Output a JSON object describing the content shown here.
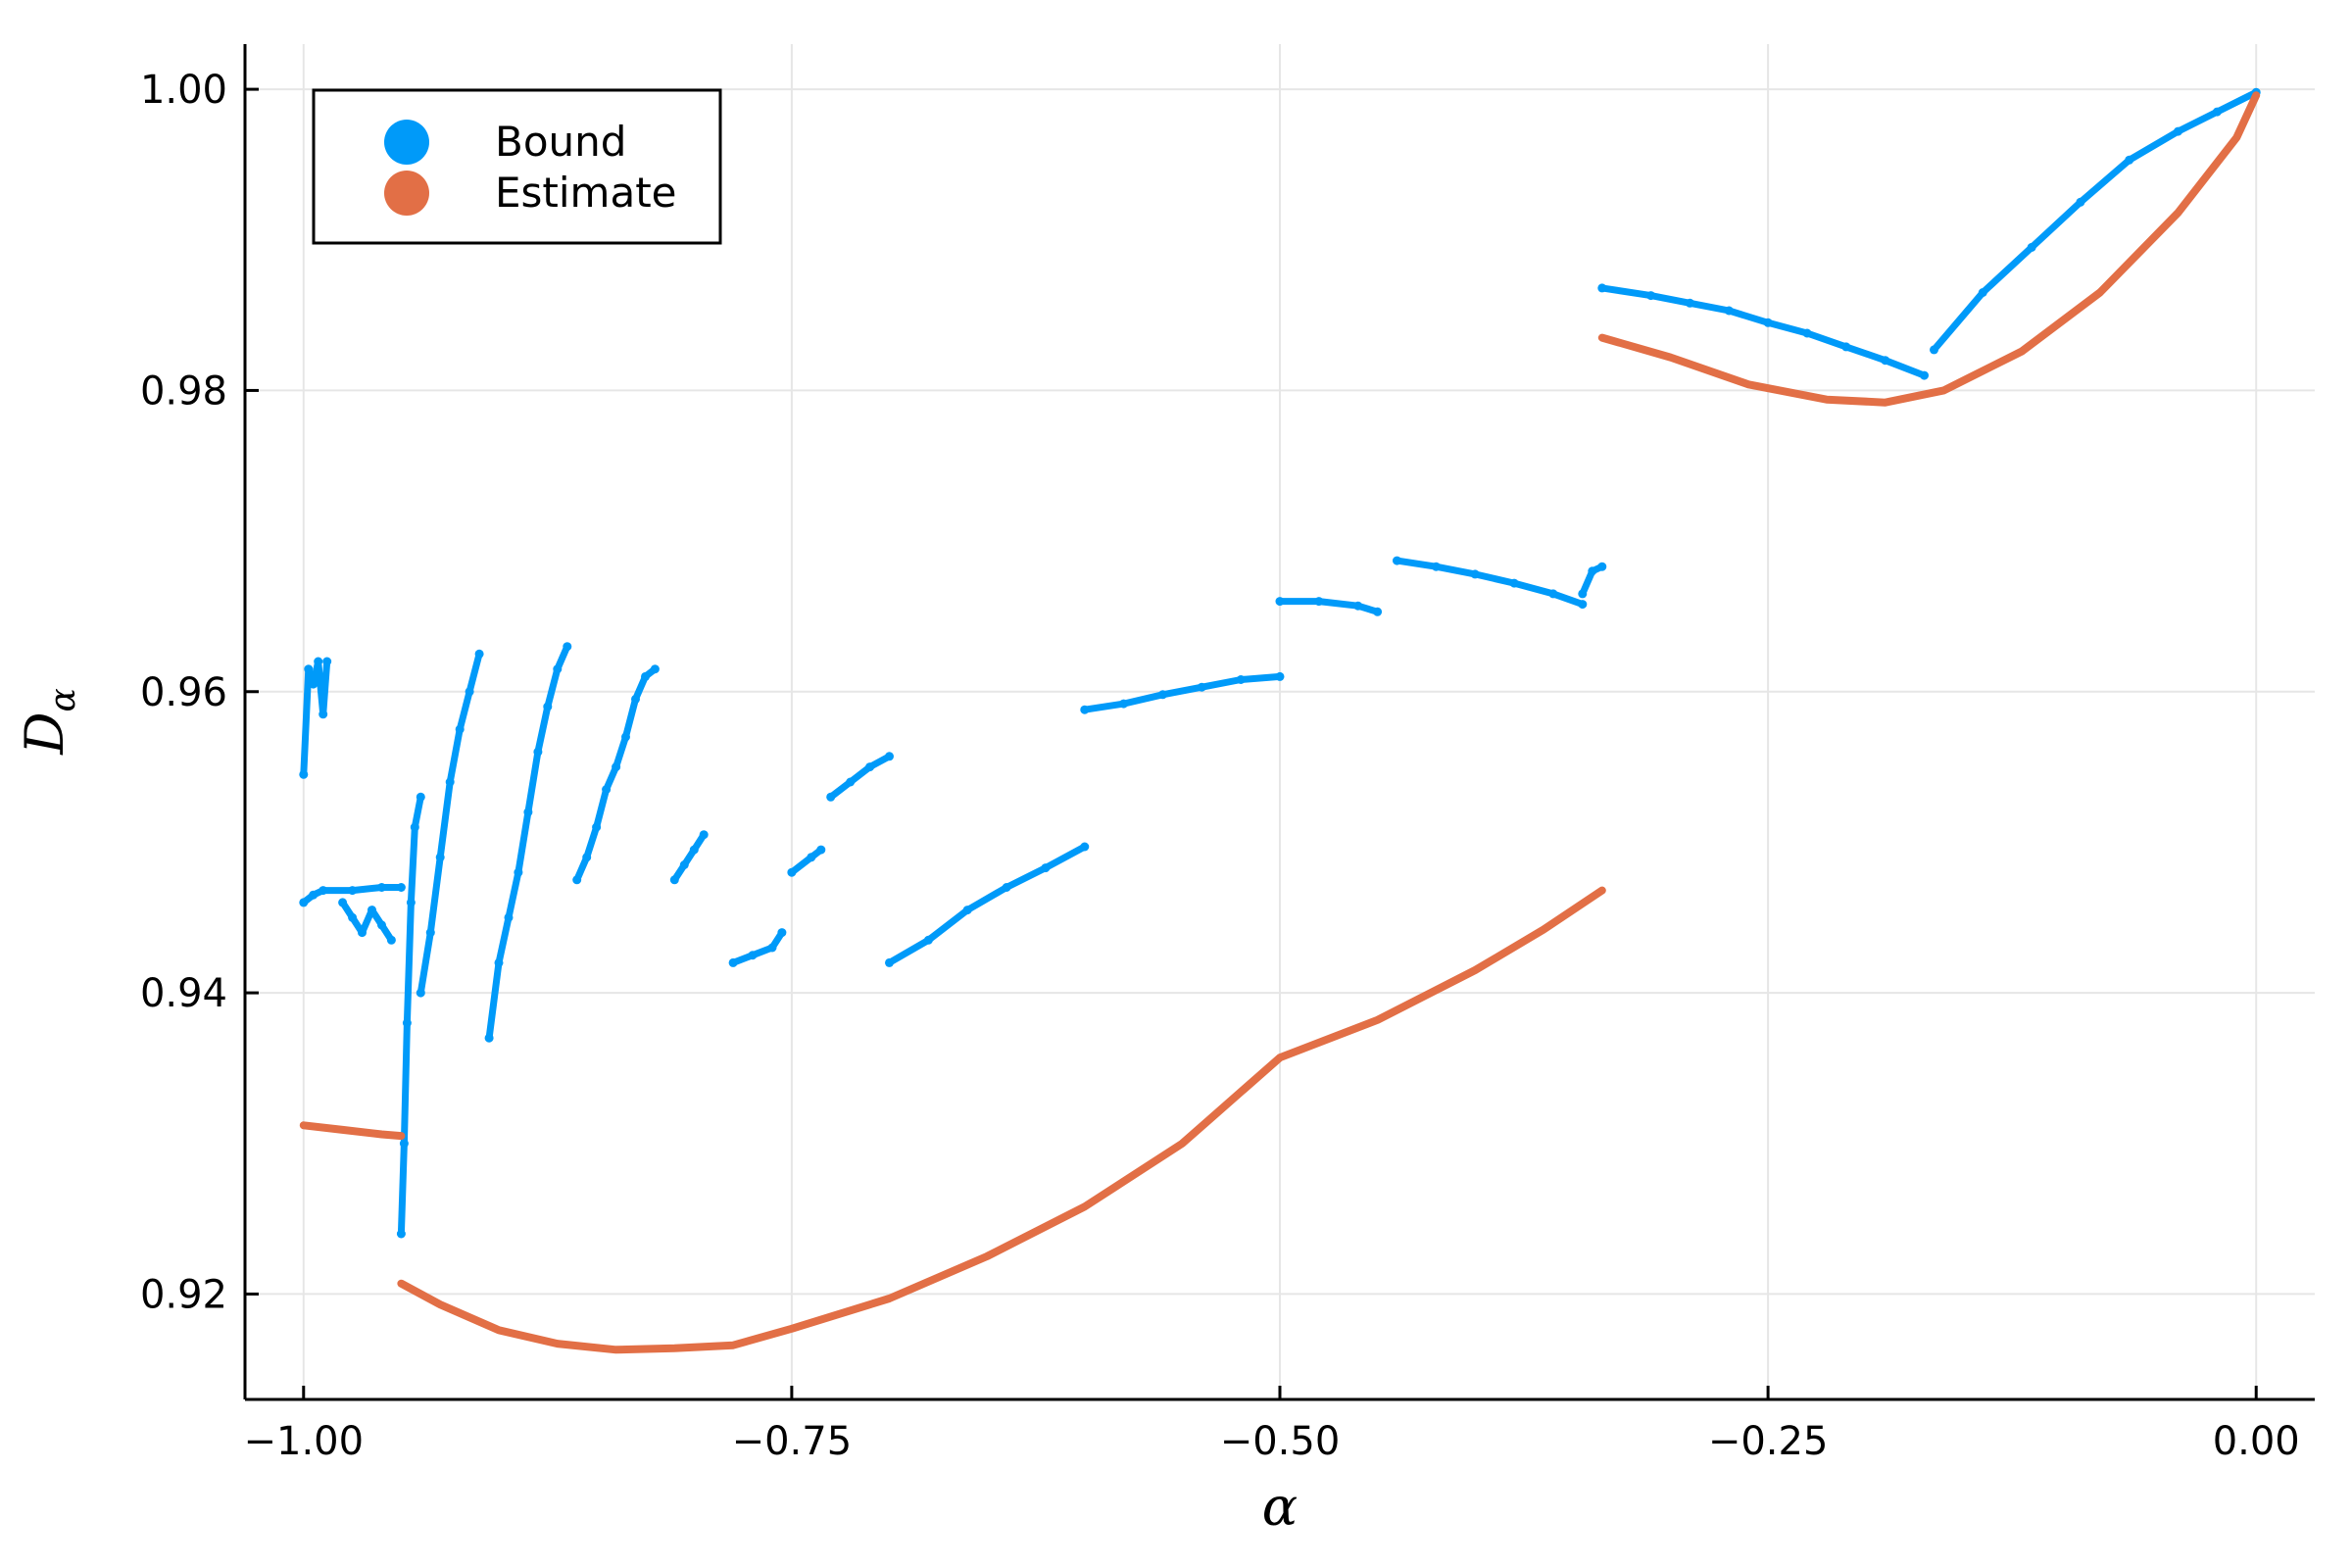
{
  "chart_data": {
    "type": "scatter",
    "title": "",
    "xlabel": "α",
    "ylabel": "D",
    "ylabel_subscript": "α",
    "xlim": [
      -1.03,
      0.03
    ],
    "ylim": [
      0.913,
      1.003
    ],
    "xticks": [
      -1.0,
      -0.75,
      -0.5,
      -0.25,
      0.0
    ],
    "xtick_labels": [
      "−1.00",
      "−0.75",
      "−0.50",
      "−0.25",
      "0.00"
    ],
    "yticks": [
      0.92,
      0.94,
      0.96,
      0.98,
      1.0
    ],
    "ytick_labels": [
      "0.92",
      "0.94",
      "0.96",
      "0.98",
      "1.00"
    ],
    "grid": true,
    "legend_position": "top-left",
    "series": [
      {
        "name": "Bound",
        "color": "#009af9",
        "marker": "dot",
        "segments": [
          [
            [
              -1.0,
              0.9545
            ],
            [
              -0.9975,
              0.9615
            ],
            [
              -0.995,
              0.9605
            ],
            [
              -0.9925,
              0.962
            ],
            [
              -0.99,
              0.9585
            ],
            [
              -0.988,
              0.962
            ]
          ],
          [
            [
              -1.0,
              0.946
            ],
            [
              -0.995,
              0.9465
            ],
            [
              -0.99,
              0.9468
            ],
            [
              -0.975,
              0.9468
            ],
            [
              -0.96,
              0.947
            ],
            [
              -0.95,
              0.947
            ]
          ],
          [
            [
              -0.98,
              0.946
            ],
            [
              -0.975,
              0.945
            ],
            [
              -0.97,
              0.944
            ],
            [
              -0.965,
              0.9455
            ],
            [
              -0.96,
              0.9445
            ],
            [
              -0.955,
              0.9435
            ]
          ],
          [
            [
              -0.95,
              0.924
            ],
            [
              -0.9485,
              0.93
            ],
            [
              -0.947,
              0.938
            ],
            [
              -0.945,
              0.946
            ],
            [
              -0.943,
              0.951
            ],
            [
              -0.94,
              0.953
            ]
          ],
          [
            [
              -0.94,
              0.94
            ],
            [
              -0.935,
              0.944
            ],
            [
              -0.93,
              0.949
            ],
            [
              -0.925,
              0.954
            ],
            [
              -0.92,
              0.9575
            ],
            [
              -0.915,
              0.96
            ],
            [
              -0.91,
              0.9625
            ]
          ],
          [
            [
              -0.905,
              0.937
            ],
            [
              -0.9,
              0.942
            ],
            [
              -0.895,
              0.945
            ],
            [
              -0.89,
              0.948
            ],
            [
              -0.885,
              0.952
            ],
            [
              -0.88,
              0.956
            ],
            [
              -0.875,
              0.959
            ],
            [
              -0.87,
              0.9615
            ],
            [
              -0.865,
              0.963
            ]
          ],
          [
            [
              -0.86,
              0.9475
            ],
            [
              -0.855,
              0.949
            ],
            [
              -0.85,
              0.951
            ],
            [
              -0.845,
              0.9535
            ],
            [
              -0.84,
              0.955
            ],
            [
              -0.835,
              0.957
            ],
            [
              -0.83,
              0.9595
            ],
            [
              -0.825,
              0.961
            ],
            [
              -0.82,
              0.9615
            ]
          ],
          [
            [
              -0.81,
              0.9475
            ],
            [
              -0.805,
              0.9485
            ],
            [
              -0.8,
              0.9495
            ],
            [
              -0.795,
              0.9505
            ]
          ],
          [
            [
              -0.78,
              0.942
            ],
            [
              -0.77,
              0.9425
            ],
            [
              -0.76,
              0.943
            ],
            [
              -0.755,
              0.944
            ]
          ],
          [
            [
              -0.75,
              0.948
            ],
            [
              -0.74,
              0.949
            ],
            [
              -0.735,
              0.9495
            ]
          ],
          [
            [
              -0.73,
              0.953
            ],
            [
              -0.72,
              0.954
            ],
            [
              -0.71,
              0.955
            ],
            [
              -0.7,
              0.9557
            ]
          ],
          [
            [
              -0.7,
              0.942
            ],
            [
              -0.68,
              0.9435
            ],
            [
              -0.66,
              0.9455
            ],
            [
              -0.64,
              0.947
            ],
            [
              -0.62,
              0.9483
            ],
            [
              -0.6,
              0.9497
            ]
          ],
          [
            [
              -0.6,
              0.9588
            ],
            [
              -0.58,
              0.9592
            ],
            [
              -0.56,
              0.9598
            ],
            [
              -0.54,
              0.9603
            ],
            [
              -0.52,
              0.9608
            ],
            [
              -0.5,
              0.961
            ]
          ],
          [
            [
              -0.5,
              0.966
            ],
            [
              -0.48,
              0.966
            ],
            [
              -0.46,
              0.9657
            ],
            [
              -0.45,
              0.9653
            ]
          ],
          [
            [
              -0.44,
              0.9687
            ],
            [
              -0.42,
              0.9683
            ],
            [
              -0.4,
              0.9678
            ],
            [
              -0.38,
              0.9672
            ],
            [
              -0.36,
              0.9665
            ],
            [
              -0.345,
              0.9658
            ]
          ],
          [
            [
              -0.345,
              0.9665
            ],
            [
              -0.34,
              0.968
            ],
            [
              -0.335,
              0.9683
            ]
          ],
          [
            [
              -0.335,
              0.9868
            ],
            [
              -0.31,
              0.9863
            ],
            [
              -0.29,
              0.9858
            ],
            [
              -0.27,
              0.9853
            ],
            [
              -0.25,
              0.9845
            ],
            [
              -0.23,
              0.9838
            ],
            [
              -0.21,
              0.9829
            ],
            [
              -0.19,
              0.982
            ],
            [
              -0.17,
              0.981
            ]
          ],
          [
            [
              -0.165,
              0.9827
            ],
            [
              -0.14,
              0.9865
            ],
            [
              -0.115,
              0.9895
            ],
            [
              -0.09,
              0.9925
            ],
            [
              -0.065,
              0.9953
            ],
            [
              -0.04,
              0.9972
            ],
            [
              -0.02,
              0.9985
            ],
            [
              0.0,
              0.9998
            ]
          ]
        ]
      },
      {
        "name": "Estimate",
        "color": "#e26f46",
        "marker": "line",
        "segments": [
          [
            [
              -1.0,
              0.9312
            ],
            [
              -0.98,
              0.9309
            ],
            [
              -0.96,
              0.9306
            ],
            [
              -0.95,
              0.9305
            ]
          ],
          [
            [
              -0.95,
              0.9207
            ],
            [
              -0.93,
              0.9193
            ],
            [
              -0.9,
              0.9176
            ],
            [
              -0.87,
              0.9167
            ],
            [
              -0.84,
              0.9163
            ],
            [
              -0.81,
              0.9164
            ],
            [
              -0.78,
              0.9166
            ],
            [
              -0.75,
              0.9177
            ],
            [
              -0.7,
              0.9197
            ],
            [
              -0.65,
              0.9225
            ],
            [
              -0.6,
              0.9258
            ],
            [
              -0.55,
              0.93
            ],
            [
              -0.5,
              0.9357
            ],
            [
              -0.45,
              0.9382
            ],
            [
              -0.4,
              0.9415
            ],
            [
              -0.365,
              0.9442
            ],
            [
              -0.335,
              0.9468
            ]
          ],
          [
            [
              -0.335,
              0.9835
            ],
            [
              -0.3,
              0.9822
            ],
            [
              -0.26,
              0.9804
            ],
            [
              -0.22,
              0.9794
            ],
            [
              -0.19,
              0.9792
            ],
            [
              -0.16,
              0.98
            ],
            [
              -0.12,
              0.9826
            ],
            [
              -0.08,
              0.9865
            ],
            [
              -0.04,
              0.9918
            ],
            [
              -0.01,
              0.9968
            ],
            [
              0.0,
              0.9996
            ]
          ]
        ]
      }
    ]
  }
}
